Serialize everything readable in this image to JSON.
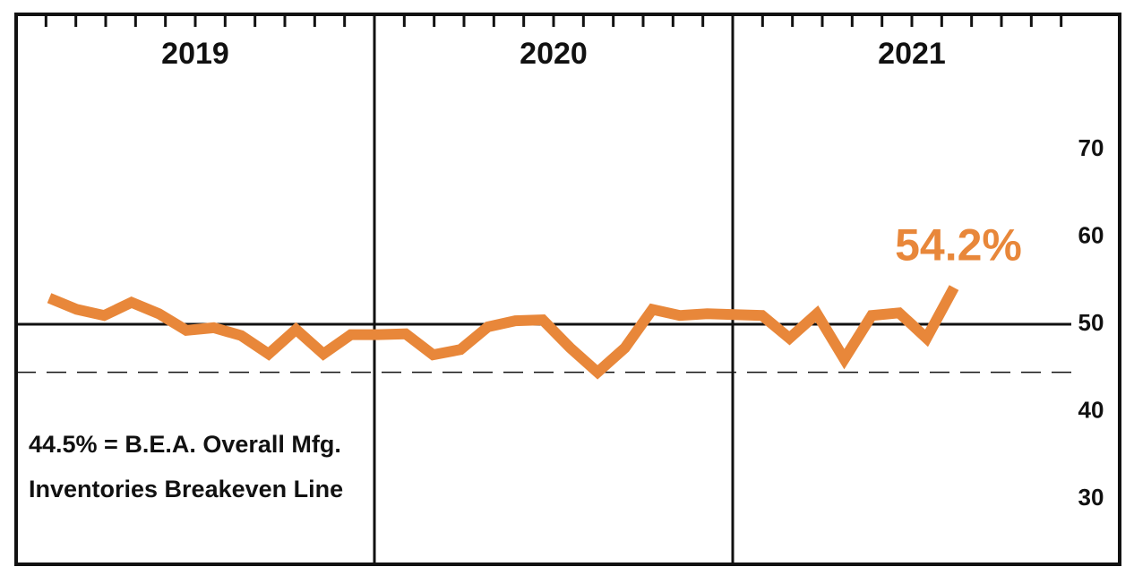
{
  "chart_data": {
    "type": "line",
    "groups": [
      "2019",
      "2020",
      "2021"
    ],
    "categories": [
      null,
      null,
      null,
      null,
      null,
      null,
      null,
      null,
      null,
      null,
      null,
      null,
      null,
      null,
      null,
      null,
      null,
      null,
      null,
      null,
      null,
      null,
      null,
      null,
      null,
      null,
      null,
      null,
      null,
      null,
      null,
      null,
      null,
      null
    ],
    "series": [
      {
        "color": "#e8873a",
        "values": [
          53.0,
          51.7,
          51.0,
          52.5,
          51.2,
          49.3,
          49.6,
          48.7,
          46.6,
          49.4,
          46.6,
          48.8,
          48.8,
          48.9,
          46.5,
          47.1,
          49.7,
          50.4,
          50.5,
          47.3,
          44.5,
          47.3,
          51.7,
          51.0,
          51.2,
          51.1,
          51.0,
          48.4,
          51.2,
          46.0,
          51.0,
          51.3,
          48.4,
          54.2
        ]
      }
    ],
    "value_label": "54.2%",
    "ylim": [
      22.5,
      85.5
    ],
    "yticks": [
      30,
      40,
      50,
      60,
      70
    ],
    "reference_lines": [
      {
        "value": 50,
        "style": "solid"
      },
      {
        "value": 44.5,
        "style": "dashed"
      }
    ],
    "annotation": [
      "44.5% = B.E.A. Overall Mfg.",
      "Inventories Breakeven Line"
    ]
  }
}
